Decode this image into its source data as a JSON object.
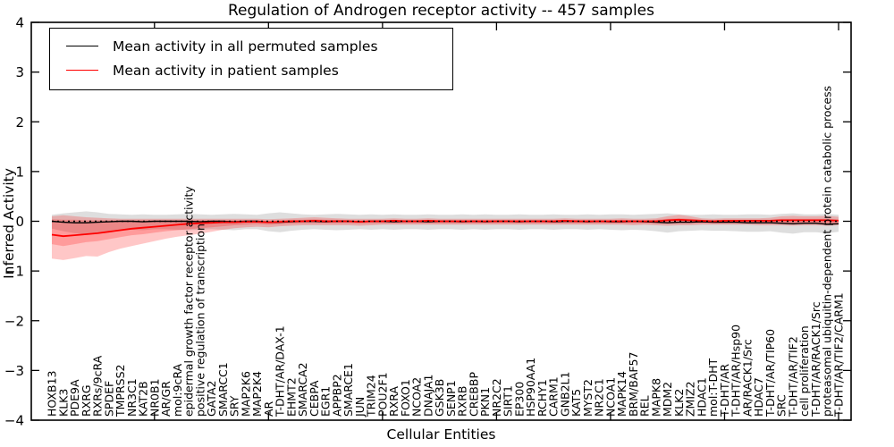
{
  "chart_data": {
    "type": "line",
    "title": "Regulation of Androgen receptor activity -- 457 samples",
    "xlabel": "Cellular Entities",
    "ylabel": "Inferred Activity",
    "ylim": [
      -4,
      4
    ],
    "yticks": [
      4,
      3,
      2,
      1,
      0,
      -1,
      -2,
      -3,
      -4
    ],
    "x_tick_indices": [
      9,
      19,
      29,
      39,
      49,
      59,
      69
    ],
    "grid": false,
    "zero_reference_line": 0,
    "legend": {
      "position": "upper left",
      "entries": [
        {
          "label": "Mean activity in all permuted samples",
          "color": "#000000"
        },
        {
          "label": "Mean activity in patient samples",
          "color": "#ff0000"
        }
      ]
    },
    "band_colors": {
      "permuted": "rgba(0,0,0,0.13)",
      "patient": "rgba(255,0,0,0.22)"
    },
    "categories": [
      "HOXB13",
      "KLK3",
      "PDE9A",
      "RXRG",
      "RXRs/9cRA",
      "SPDEF",
      "TMPRSS2",
      "NR3C1",
      "KAT2B",
      "NR0B1",
      "AR/GR",
      "mol:9cRA",
      "epidermal growth factor receptor activity",
      "positive regulation of transcription",
      "GATA2",
      "SMARCC1",
      "SRY",
      "MAP2K6",
      "MAP2K4",
      "AR",
      "T-DHT/AR/DAX-1",
      "EHMT2",
      "SMARCA2",
      "CEBPA",
      "EGR1",
      "APPBP2",
      "SMARCE1",
      "JUN",
      "TRIM24",
      "POU2F1",
      "RXRA",
      "FOXO1",
      "NCOA2",
      "DNAJA1",
      "GSK3B",
      "SENP1",
      "RXRB",
      "CREBBP",
      "PKN1",
      "NR2C2",
      "SIRT1",
      "EP300",
      "HSP90AA1",
      "RCHY1",
      "CARM1",
      "GNB2L1",
      "KAT5",
      "MYST2",
      "NR2C1",
      "NCOA1",
      "MAPK14",
      "BRM/BAF57",
      "REL",
      "MAPK8",
      "MDM2",
      "KLK2",
      "ZMIZ2",
      "HDAC1",
      "mol:T-DHT",
      "T-DHT/AR",
      "T-DHT/AR/Hsp90",
      "AR/RACK1/Src",
      "HDAC7",
      "T-DHT/AR/TIP60",
      "SRC",
      "T-DHT/AR/TIF2",
      "cell proliferation",
      "T-DHT/AR/RACK1/Src",
      "proteasomal ubiquitin-dependent protein catabolic process",
      "T-DHT/AR/TIF2/CARM1"
    ],
    "series": [
      {
        "name": "Mean activity in all permuted samples",
        "color": "#000000",
        "values": [
          0.0,
          -0.02,
          -0.03,
          -0.03,
          -0.02,
          -0.01,
          0.0,
          0.0,
          -0.01,
          0.0,
          0.0,
          0.0,
          0.0,
          -0.01,
          0.0,
          0.0,
          -0.01,
          0.0,
          0.0,
          -0.02,
          -0.02,
          -0.01,
          0.0,
          0.0,
          -0.01,
          0.0,
          0.0,
          -0.01,
          0.0,
          0.0,
          -0.01,
          0.0,
          0.0,
          -0.01,
          0.0,
          0.0,
          -0.01,
          0.0,
          -0.01,
          0.0,
          0.0,
          -0.01,
          0.0,
          0.0,
          -0.01,
          0.0,
          0.0,
          -0.01,
          0.0,
          -0.01,
          -0.01,
          0.0,
          -0.01,
          -0.02,
          -0.03,
          -0.02,
          -0.02,
          -0.01,
          -0.02,
          -0.02,
          -0.02,
          -0.03,
          -0.03,
          -0.03,
          -0.04,
          -0.05,
          -0.04,
          -0.04,
          -0.06,
          -0.05
        ],
        "band_upper": [
          0.13,
          0.16,
          0.18,
          0.2,
          0.18,
          0.15,
          0.14,
          0.13,
          0.14,
          0.13,
          0.13,
          0.14,
          0.15,
          0.14,
          0.13,
          0.14,
          0.15,
          0.14,
          0.13,
          0.16,
          0.18,
          0.16,
          0.14,
          0.13,
          0.14,
          0.15,
          0.14,
          0.13,
          0.14,
          0.13,
          0.14,
          0.13,
          0.13,
          0.14,
          0.13,
          0.13,
          0.14,
          0.13,
          0.14,
          0.13,
          0.13,
          0.14,
          0.13,
          0.13,
          0.14,
          0.13,
          0.13,
          0.14,
          0.13,
          0.14,
          0.14,
          0.13,
          0.14,
          0.15,
          0.16,
          0.14,
          0.13,
          0.13,
          0.14,
          0.13,
          0.13,
          0.14,
          0.14,
          0.13,
          0.15,
          0.16,
          0.14,
          0.14,
          0.15,
          0.13
        ],
        "band_lower": [
          -0.15,
          -0.2,
          -0.24,
          -0.26,
          -0.24,
          -0.21,
          -0.18,
          -0.17,
          -0.18,
          -0.16,
          -0.16,
          -0.17,
          -0.18,
          -0.17,
          -0.16,
          -0.17,
          -0.18,
          -0.16,
          -0.16,
          -0.2,
          -0.22,
          -0.19,
          -0.17,
          -0.16,
          -0.17,
          -0.18,
          -0.17,
          -0.16,
          -0.17,
          -0.16,
          -0.17,
          -0.16,
          -0.16,
          -0.17,
          -0.16,
          -0.16,
          -0.17,
          -0.16,
          -0.17,
          -0.16,
          -0.16,
          -0.17,
          -0.16,
          -0.16,
          -0.17,
          -0.16,
          -0.16,
          -0.17,
          -0.16,
          -0.17,
          -0.18,
          -0.17,
          -0.18,
          -0.2,
          -0.23,
          -0.2,
          -0.19,
          -0.18,
          -0.19,
          -0.19,
          -0.2,
          -0.21,
          -0.21,
          -0.2,
          -0.23,
          -0.25,
          -0.22,
          -0.22,
          -0.24,
          -0.21
        ]
      },
      {
        "name": "Mean activity in patient samples",
        "color": "#ff0000",
        "values": [
          -0.27,
          -0.3,
          -0.28,
          -0.26,
          -0.24,
          -0.21,
          -0.18,
          -0.15,
          -0.13,
          -0.11,
          -0.09,
          -0.07,
          -0.05,
          -0.04,
          -0.03,
          -0.02,
          -0.02,
          -0.01,
          -0.01,
          -0.02,
          -0.01,
          0.0,
          0.0,
          0.01,
          0.0,
          0.0,
          0.0,
          -0.01,
          0.0,
          0.0,
          0.01,
          0.0,
          0.0,
          0.01,
          0.0,
          0.0,
          0.0,
          0.0,
          0.0,
          0.0,
          0.0,
          0.0,
          0.0,
          0.0,
          0.0,
          0.01,
          0.0,
          0.0,
          0.0,
          0.0,
          0.0,
          0.0,
          0.0,
          0.0,
          0.02,
          0.03,
          0.02,
          0.01,
          0.0,
          0.01,
          0.01,
          0.01,
          0.01,
          0.01,
          0.02,
          0.02,
          0.02,
          0.02,
          0.02,
          0.01
        ],
        "band_upper": [
          0.1,
          0.12,
          0.1,
          0.08,
          0.07,
          0.06,
          0.05,
          0.05,
          0.05,
          0.05,
          0.05,
          0.05,
          0.05,
          0.05,
          0.05,
          0.05,
          0.05,
          0.05,
          0.05,
          0.04,
          0.05,
          0.06,
          0.07,
          0.08,
          0.07,
          0.06,
          0.05,
          0.05,
          0.05,
          0.05,
          0.06,
          0.05,
          0.05,
          0.06,
          0.05,
          0.05,
          0.05,
          0.05,
          0.05,
          0.05,
          0.05,
          0.05,
          0.05,
          0.05,
          0.05,
          0.06,
          0.05,
          0.05,
          0.05,
          0.05,
          0.06,
          0.05,
          0.05,
          0.06,
          0.1,
          0.13,
          0.1,
          0.06,
          0.05,
          0.06,
          0.06,
          0.06,
          0.06,
          0.07,
          0.1,
          0.11,
          0.1,
          0.1,
          0.11,
          0.09
        ],
        "band_lower": [
          -0.75,
          -0.78,
          -0.74,
          -0.7,
          -0.71,
          -0.62,
          -0.55,
          -0.5,
          -0.45,
          -0.4,
          -0.35,
          -0.31,
          -0.28,
          -0.25,
          -0.21,
          -0.17,
          -0.14,
          -0.12,
          -0.11,
          -0.12,
          -0.1,
          -0.09,
          -0.08,
          -0.08,
          -0.08,
          -0.08,
          -0.08,
          -0.09,
          -0.08,
          -0.07,
          -0.07,
          -0.07,
          -0.07,
          -0.07,
          -0.07,
          -0.07,
          -0.07,
          -0.07,
          -0.07,
          -0.07,
          -0.07,
          -0.07,
          -0.07,
          -0.07,
          -0.07,
          -0.07,
          -0.07,
          -0.07,
          -0.07,
          -0.07,
          -0.07,
          -0.08,
          -0.07,
          -0.08,
          -0.09,
          -0.08,
          -0.08,
          -0.07,
          -0.07,
          -0.07,
          -0.07,
          -0.07,
          -0.08,
          -0.08,
          -0.08,
          -0.09,
          -0.08,
          -0.08,
          -0.09,
          -0.08
        ],
        "band_upper_inner": [
          0.04,
          0.03,
          0.03,
          0.02,
          0.02,
          0.02,
          0.02,
          0.02,
          0.02,
          0.02,
          0.02,
          0.02,
          0.02,
          0.02,
          0.02,
          0.02,
          0.02,
          0.02,
          0.02,
          0.01,
          0.02,
          0.03,
          0.03,
          0.04,
          0.03,
          0.03,
          0.02,
          0.02,
          0.02,
          0.02,
          0.03,
          0.02,
          0.02,
          0.03,
          0.02,
          0.02,
          0.02,
          0.02,
          0.02,
          0.02,
          0.02,
          0.02,
          0.02,
          0.02,
          0.02,
          0.03,
          0.02,
          0.02,
          0.02,
          0.02,
          0.03,
          0.02,
          0.02,
          0.03,
          0.05,
          0.06,
          0.05,
          0.03,
          0.02,
          0.03,
          0.03,
          0.03,
          0.03,
          0.03,
          0.05,
          0.05,
          0.05,
          0.05,
          0.05,
          0.04
        ],
        "band_lower_inner": [
          -0.46,
          -0.5,
          -0.46,
          -0.42,
          -0.4,
          -0.36,
          -0.32,
          -0.28,
          -0.26,
          -0.23,
          -0.2,
          -0.18,
          -0.16,
          -0.14,
          -0.12,
          -0.1,
          -0.08,
          -0.07,
          -0.06,
          -0.07,
          -0.06,
          -0.05,
          -0.04,
          -0.04,
          -0.04,
          -0.04,
          -0.04,
          -0.05,
          -0.04,
          -0.04,
          -0.04,
          -0.04,
          -0.04,
          -0.04,
          -0.04,
          -0.04,
          -0.04,
          -0.04,
          -0.04,
          -0.04,
          -0.04,
          -0.04,
          -0.04,
          -0.04,
          -0.04,
          -0.04,
          -0.04,
          -0.04,
          -0.04,
          -0.04,
          -0.04,
          -0.04,
          -0.04,
          -0.04,
          -0.05,
          -0.04,
          -0.04,
          -0.04,
          -0.04,
          -0.04,
          -0.04,
          -0.04,
          -0.04,
          -0.04,
          -0.04,
          -0.05,
          -0.04,
          -0.04,
          -0.05,
          -0.04
        ]
      }
    ]
  }
}
